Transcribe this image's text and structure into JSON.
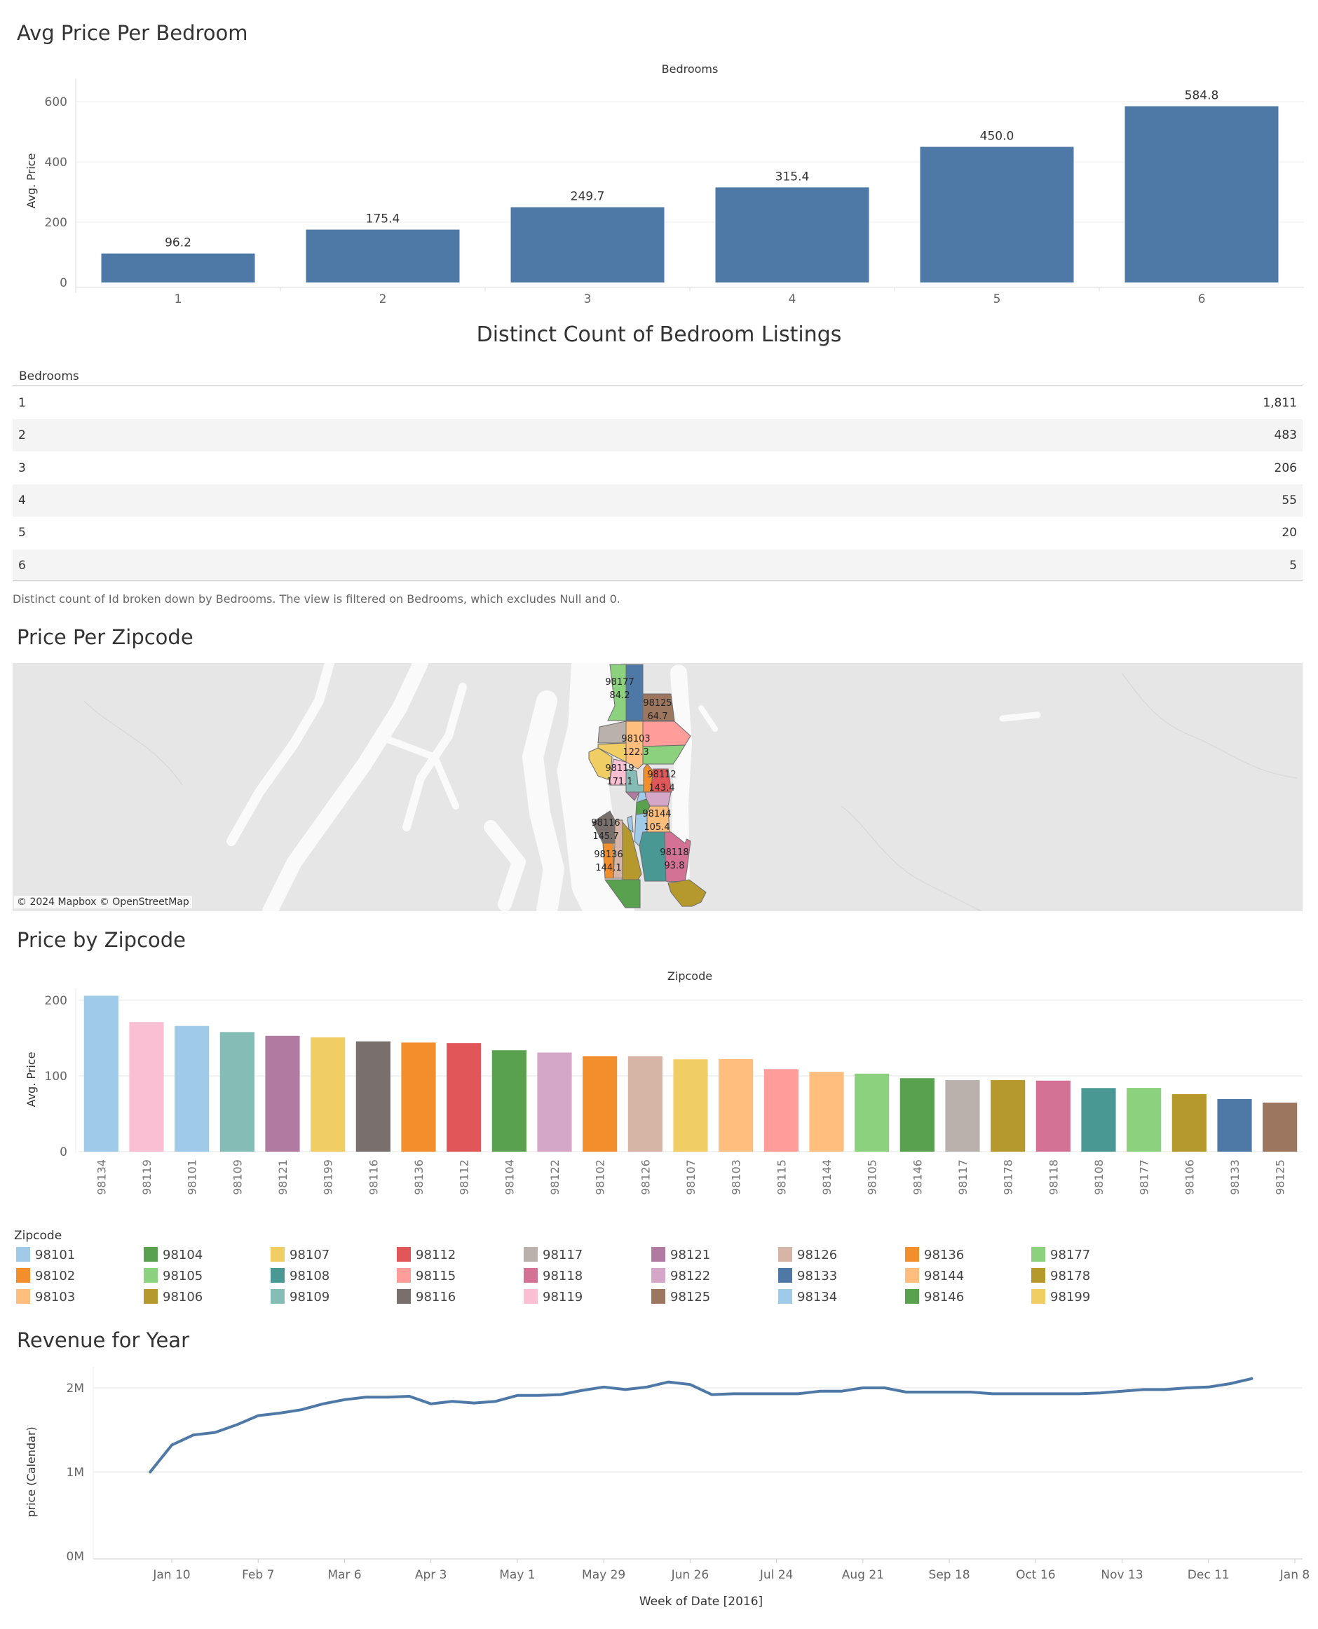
{
  "sections": {
    "bedroom_title": "Avg Price Per Bedroom",
    "count_title": "Distinct Count of Bedroom Listings",
    "map_title": "Price Per Zipcode",
    "zip_title": "Price by Zipcode",
    "revenue_title": "Revenue for Year"
  },
  "table": {
    "header": "Bedrooms",
    "rows": [
      {
        "bedrooms": "1",
        "count": "1,811"
      },
      {
        "bedrooms": "2",
        "count": "483"
      },
      {
        "bedrooms": "3",
        "count": "206"
      },
      {
        "bedrooms": "4",
        "count": "55"
      },
      {
        "bedrooms": "5",
        "count": "20"
      },
      {
        "bedrooms": "6",
        "count": "5"
      }
    ],
    "footnote": "Distinct count of Id broken down by Bedrooms. The view is filtered on Bedrooms, which excludes Null and 0."
  },
  "map": {
    "attribution": "© 2024 Mapbox © OpenStreetMap",
    "labels": [
      {
        "zip": "98177",
        "value": "84.2"
      },
      {
        "zip": "98125",
        "value": "64.7"
      },
      {
        "zip": "98103",
        "value": "122.3"
      },
      {
        "zip": "98119",
        "value": "171.1"
      },
      {
        "zip": "98112",
        "value": "143.4"
      },
      {
        "zip": "98144",
        "value": "105.4"
      },
      {
        "zip": "98116",
        "value": "145.7"
      },
      {
        "zip": "98136",
        "value": "144.1"
      },
      {
        "zip": "98118",
        "value": "93.8"
      }
    ]
  },
  "legend": {
    "title": "Zipcode",
    "items": [
      {
        "zip": "98101",
        "color": "#a0cbe8"
      },
      {
        "zip": "98102",
        "color": "#f28e2b"
      },
      {
        "zip": "98103",
        "color": "#ffbe7d"
      },
      {
        "zip": "98104",
        "color": "#59a14f"
      },
      {
        "zip": "98105",
        "color": "#8cd17d"
      },
      {
        "zip": "98106",
        "color": "#b6992d"
      },
      {
        "zip": "98107",
        "color": "#f1ce63"
      },
      {
        "zip": "98108",
        "color": "#499894"
      },
      {
        "zip": "98109",
        "color": "#86bcb6"
      },
      {
        "zip": "98112",
        "color": "#e15759"
      },
      {
        "zip": "98115",
        "color": "#ff9d9a"
      },
      {
        "zip": "98116",
        "color": "#79706e"
      },
      {
        "zip": "98117",
        "color": "#bab0ac"
      },
      {
        "zip": "98118",
        "color": "#d37295"
      },
      {
        "zip": "98119",
        "color": "#fabfd2"
      },
      {
        "zip": "98121",
        "color": "#b07aa1"
      },
      {
        "zip": "98122",
        "color": "#d4a6c8"
      },
      {
        "zip": "98125",
        "color": "#9d7660"
      },
      {
        "zip": "98126",
        "color": "#d7b5a6"
      },
      {
        "zip": "98133",
        "color": "#4e79a7"
      },
      {
        "zip": "98134",
        "color": "#a0cbe8"
      },
      {
        "zip": "98136",
        "color": "#f28e2b"
      },
      {
        "zip": "98144",
        "color": "#ffbe7d"
      },
      {
        "zip": "98146",
        "color": "#59a14f"
      },
      {
        "zip": "98177",
        "color": "#8cd17d"
      },
      {
        "zip": "98178",
        "color": "#b6992d"
      },
      {
        "zip": "98199",
        "color": "#f1ce63"
      }
    ]
  },
  "chart_data": [
    {
      "type": "bar",
      "title": "Avg Price Per Bedroom",
      "column_header": "Bedrooms",
      "ylabel": "Avg. Price",
      "categories": [
        "1",
        "2",
        "3",
        "4",
        "5",
        "6"
      ],
      "values": [
        96.2,
        175.4,
        249.7,
        315.4,
        450.0,
        584.8
      ],
      "value_labels": [
        "96.2",
        "175.4",
        "249.7",
        "315.4",
        "450.0",
        "584.8"
      ],
      "yticks": [
        "0",
        "200",
        "400",
        "600"
      ],
      "ylim": [
        0,
        600
      ],
      "color": "#4e79a7",
      "grid": true
    },
    {
      "type": "bar",
      "title": "Price by Zipcode",
      "column_header": "Zipcode",
      "ylabel": "Avg. Price",
      "categories": [
        "98134",
        "98119",
        "98101",
        "98109",
        "98121",
        "98199",
        "98116",
        "98136",
        "98112",
        "98104",
        "98122",
        "98102",
        "98126",
        "98107",
        "98103",
        "98115",
        "98144",
        "98105",
        "98146",
        "98117",
        "98178",
        "98118",
        "98108",
        "98177",
        "98106",
        "98133",
        "98125"
      ],
      "values": [
        206,
        171.1,
        166,
        158,
        153,
        151,
        145.7,
        144.1,
        143.4,
        134,
        131,
        126,
        126,
        122,
        122.3,
        109,
        105.4,
        103,
        97,
        94.5,
        94.5,
        93.8,
        84,
        84.2,
        76,
        69.5,
        64.7
      ],
      "yticks": [
        "0",
        "100",
        "200"
      ],
      "ylim": [
        0,
        200
      ],
      "grid": true
    },
    {
      "type": "line",
      "title": "Revenue for Year",
      "xlabel": "Week of Date [2016]",
      "ylabel": "price (Calendar)",
      "xticks": [
        "Jan 10",
        "Feb 7",
        "Mar 6",
        "Apr 3",
        "May 1",
        "May 29",
        "Jun 26",
        "Jul 24",
        "Aug 21",
        "Sep 18",
        "Oct 16",
        "Nov 13",
        "Dec 11",
        "Jan 8"
      ],
      "yticks": [
        "0M",
        "1M",
        "2M"
      ],
      "ylim": [
        0,
        2000000
      ],
      "color": "#4e79a7",
      "grid": true,
      "x": [
        "2016-01-03",
        "2016-01-10",
        "2016-01-17",
        "2016-01-24",
        "2016-01-31",
        "2016-02-07",
        "2016-02-14",
        "2016-02-21",
        "2016-02-28",
        "2016-03-06",
        "2016-03-13",
        "2016-03-20",
        "2016-03-27",
        "2016-04-03",
        "2016-04-10",
        "2016-04-17",
        "2016-04-24",
        "2016-05-01",
        "2016-05-08",
        "2016-05-15",
        "2016-05-22",
        "2016-05-29",
        "2016-06-05",
        "2016-06-12",
        "2016-06-19",
        "2016-06-26",
        "2016-07-03",
        "2016-07-10",
        "2016-07-17",
        "2016-07-24",
        "2016-07-31",
        "2016-08-07",
        "2016-08-14",
        "2016-08-21",
        "2016-08-28",
        "2016-09-04",
        "2016-09-11",
        "2016-09-18",
        "2016-09-25",
        "2016-10-02",
        "2016-10-09",
        "2016-10-16",
        "2016-10-23",
        "2016-10-30",
        "2016-11-06",
        "2016-11-13",
        "2016-11-20",
        "2016-11-27",
        "2016-12-04",
        "2016-12-11",
        "2016-12-18",
        "2016-12-25"
      ],
      "y": [
        1000000,
        1320000,
        1440000,
        1470000,
        1560000,
        1670000,
        1700000,
        1740000,
        1810000,
        1860000,
        1890000,
        1890000,
        1900000,
        1810000,
        1840000,
        1820000,
        1840000,
        1910000,
        1910000,
        1920000,
        1970000,
        2010000,
        1980000,
        2010000,
        2070000,
        2040000,
        1920000,
        1930000,
        1930000,
        1930000,
        1930000,
        1960000,
        1960000,
        2000000,
        2000000,
        1950000,
        1950000,
        1950000,
        1950000,
        1930000,
        1930000,
        1930000,
        1930000,
        1930000,
        1940000,
        1960000,
        1980000,
        1980000,
        2000000,
        2010000,
        2050000,
        2110000
      ]
    }
  ]
}
